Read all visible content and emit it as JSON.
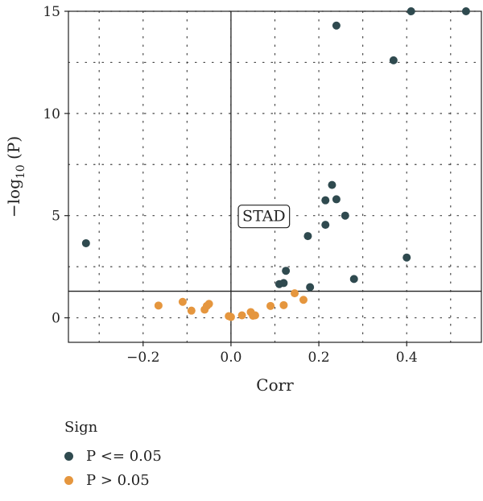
{
  "chart_data": {
    "type": "scatter",
    "xlabel": "Corr",
    "ylabel_main": "−log",
    "ylabel_sub": "10",
    "ylabel_tail": " (P)",
    "xlim": [
      -0.37,
      0.57
    ],
    "ylim": [
      -1.2,
      15
    ],
    "x_ticks": [
      -0.2,
      0.0,
      0.2,
      0.4
    ],
    "x_tick_labels": [
      "−0.2",
      "0.0",
      "0.2",
      "0.4"
    ],
    "y_ticks": [
      0,
      5,
      10,
      15
    ],
    "y_tick_labels": [
      "0",
      "5",
      "10",
      "15"
    ],
    "grid": "dotted",
    "reference_lines": {
      "vertical_x": 0,
      "horizontal_y": 1.3
    },
    "annotation": {
      "text": "STAD",
      "x": 0.075,
      "y": 5.0
    },
    "series": [
      {
        "name": "P <= 0.05",
        "color": "#2f4a4f",
        "points": [
          [
            -0.33,
            3.65
          ],
          [
            0.11,
            1.65
          ],
          [
            0.12,
            1.7
          ],
          [
            0.125,
            2.3
          ],
          [
            0.175,
            4.0
          ],
          [
            0.18,
            1.5
          ],
          [
            0.215,
            4.55
          ],
          [
            0.215,
            5.75
          ],
          [
            0.23,
            6.5
          ],
          [
            0.24,
            5.8
          ],
          [
            0.26,
            5.0
          ],
          [
            0.28,
            1.9
          ],
          [
            0.24,
            14.3
          ],
          [
            0.37,
            12.6
          ],
          [
            0.4,
            2.95
          ],
          [
            0.41,
            15.0
          ],
          [
            0.535,
            15.0
          ]
        ]
      },
      {
        "name": "P > 0.05",
        "color": "#e5963e",
        "points": [
          [
            -0.165,
            0.6
          ],
          [
            -0.11,
            0.78
          ],
          [
            -0.09,
            0.35
          ],
          [
            -0.06,
            0.4
          ],
          [
            -0.055,
            0.58
          ],
          [
            -0.05,
            0.68
          ],
          [
            -0.005,
            0.08
          ],
          [
            0.0,
            0.04
          ],
          [
            0.025,
            0.12
          ],
          [
            0.045,
            0.28
          ],
          [
            0.05,
            0.1
          ],
          [
            0.055,
            0.12
          ],
          [
            0.09,
            0.58
          ],
          [
            0.12,
            0.62
          ],
          [
            0.145,
            1.2
          ],
          [
            0.165,
            0.88
          ]
        ]
      }
    ]
  },
  "legend": {
    "title": "Sign",
    "items": [
      {
        "label": "P <= 0.05",
        "color": "#2f4a4f"
      },
      {
        "label": "P > 0.05",
        "color": "#e5963e"
      }
    ]
  }
}
